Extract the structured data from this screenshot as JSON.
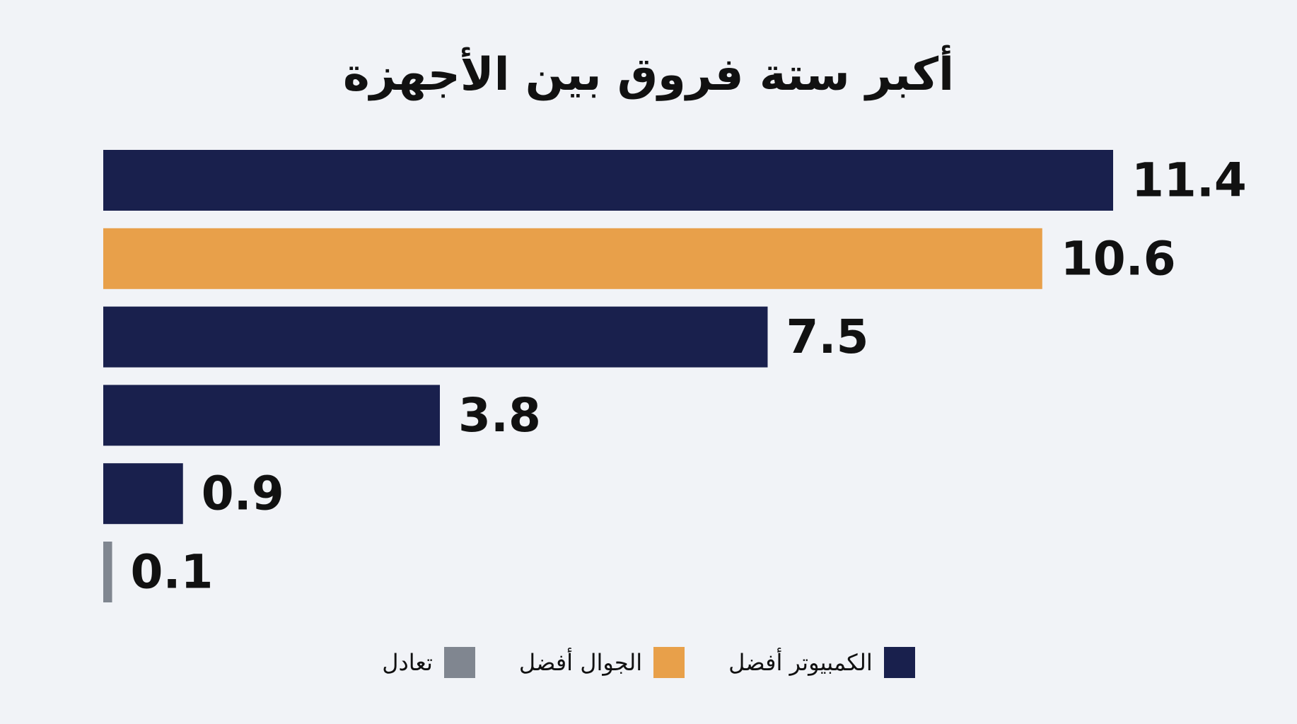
{
  "chart_data": {
    "type": "bar",
    "orientation": "horizontal",
    "title": "أكبر ستة فروق بين الأجهزة",
    "values": [
      11.4,
      10.6,
      7.5,
      3.8,
      0.9,
      0.1
    ],
    "labels": [
      "11.4",
      "10.6",
      "7.5",
      "3.8",
      "0.9",
      "0.1"
    ],
    "groups": [
      "computer",
      "mobile",
      "computer",
      "computer",
      "computer",
      "tie"
    ],
    "legend": [
      {
        "key": "computer",
        "label": "الكمبيوتر أفضل",
        "color": "#19204d"
      },
      {
        "key": "mobile",
        "label": "الجوال أفضل",
        "color": "#e8a04a"
      },
      {
        "key": "tie",
        "label": "تعادل",
        "color": "#808690"
      }
    ],
    "legend_placement": "bottom",
    "grid": false,
    "axes_visible": false,
    "xlim": [
      0,
      11.4
    ]
  }
}
